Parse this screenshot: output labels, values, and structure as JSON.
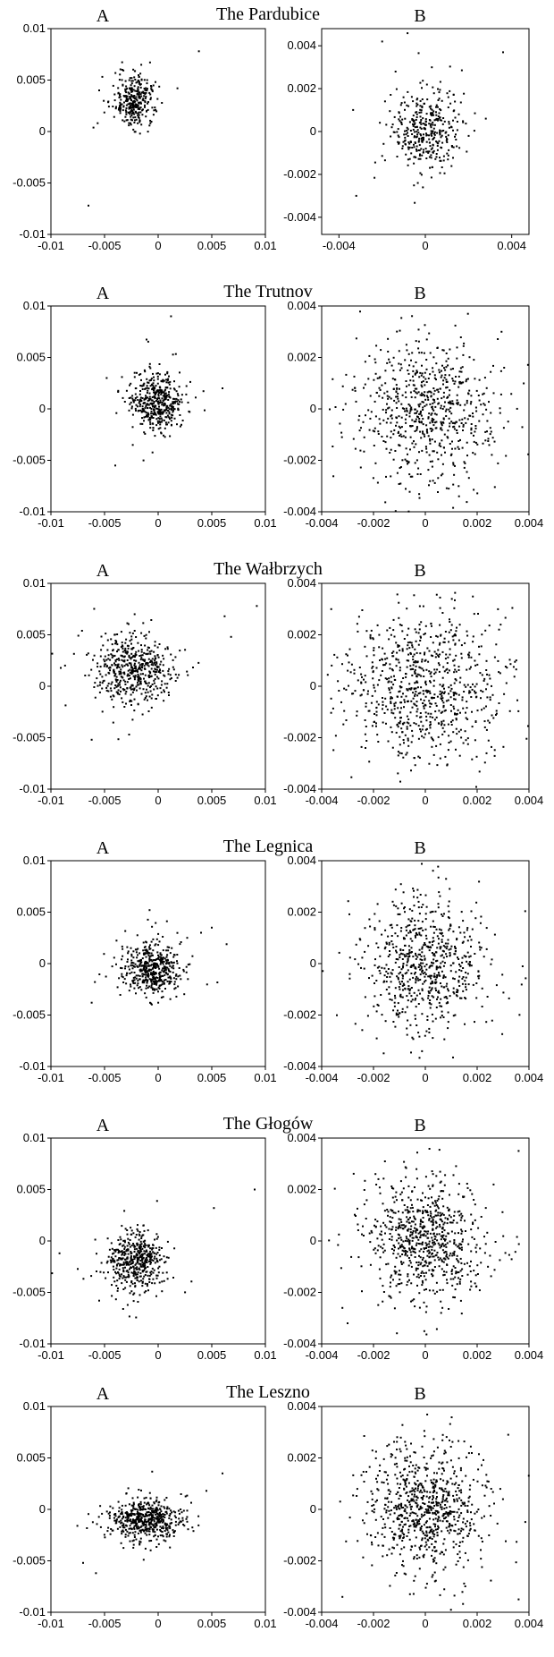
{
  "figure": {
    "panel_labels": [
      "A",
      "B"
    ]
  },
  "style": {
    "ink_color": "#000000",
    "background": "#ffffff"
  },
  "chart_data": [
    {
      "type": "scatter",
      "station": "The Pardubice",
      "title": "The Pardubice",
      "A": {
        "xlim": [
          -0.01,
          0.01
        ],
        "ylim": [
          -0.01,
          0.01
        ],
        "xticks": [
          "-0.01",
          "-0.005",
          "0",
          "0.005",
          "0.01"
        ],
        "yticks": [
          "-0.01",
          "-0.005",
          "0",
          "0.005",
          "0.01"
        ],
        "cluster": {
          "cx": -0.0022,
          "cy": 0.003,
          "sx": 0.0008,
          "sy": 0.0012,
          "n": 320
        },
        "outliers": [
          [
            -0.0065,
            -0.0072
          ],
          [
            0.0038,
            0.0078
          ],
          [
            -0.0055,
            0.004
          ],
          [
            0.0018,
            0.0042
          ]
        ]
      },
      "B": {
        "xlim": [
          -0.0048,
          0.0048
        ],
        "ylim": [
          -0.0048,
          0.0048
        ],
        "xticks": [
          "-0.004",
          "0",
          "0.004"
        ],
        "yticks": [
          "-0.004",
          "-0.002",
          "0",
          "0.002",
          "0.004"
        ],
        "cluster": {
          "cx": 0.0,
          "cy": 0.0,
          "sx": 0.0007,
          "sy": 0.0009,
          "n": 380
        },
        "outliers": [
          [
            -0.0032,
            -0.003
          ],
          [
            0.0036,
            0.0037
          ],
          [
            -0.002,
            0.0042
          ],
          [
            0.0028,
            0.0006
          ]
        ]
      }
    },
    {
      "type": "scatter",
      "station": "The Trutnov",
      "title": "The Trutnov",
      "A": {
        "xlim": [
          -0.01,
          0.01
        ],
        "ylim": [
          -0.01,
          0.01
        ],
        "xticks": [
          "-0.01",
          "-0.005",
          "0",
          "0.005",
          "0.01"
        ],
        "yticks": [
          "-0.01",
          "-0.005",
          "0",
          "0.005",
          "0.01"
        ],
        "cluster": {
          "cx": -0.0002,
          "cy": 0.0008,
          "sx": 0.0011,
          "sy": 0.0013,
          "n": 450
        },
        "outliers": [
          [
            -0.004,
            -0.0055
          ],
          [
            0.006,
            0.002
          ],
          [
            0.0012,
            0.009
          ],
          [
            -0.0048,
            0.003
          ]
        ]
      },
      "B": {
        "xlim": [
          -0.004,
          0.004
        ],
        "ylim": [
          -0.004,
          0.004
        ],
        "xticks": [
          "-0.004",
          "-0.002",
          "0",
          "0.002",
          "0.004"
        ],
        "yticks": [
          "-0.004",
          "-0.002",
          "0",
          "0.002",
          "0.004"
        ],
        "cluster": {
          "cx": 0.0,
          "cy": 0.0,
          "sx": 0.0013,
          "sy": 0.0013,
          "n": 700
        },
        "outliers": []
      }
    },
    {
      "type": "scatter",
      "station": "The Wałbrzych",
      "title": "The Wałbrzych",
      "A": {
        "xlim": [
          -0.01,
          0.01
        ],
        "ylim": [
          -0.01,
          0.01
        ],
        "xticks": [
          "-0.01",
          "-0.005",
          "0",
          "0.005",
          "0.01"
        ],
        "yticks": [
          "-0.01",
          "-0.005",
          "0",
          "0.005",
          "0.01"
        ],
        "cluster": {
          "cx": -0.0025,
          "cy": 0.0016,
          "sx": 0.0018,
          "sy": 0.0016,
          "n": 520
        },
        "outliers": [
          [
            0.0092,
            0.0078
          ],
          [
            0.0062,
            0.0068
          ],
          [
            0.0068,
            0.0048
          ],
          [
            -0.0062,
            -0.0052
          ]
        ]
      },
      "B": {
        "xlim": [
          -0.004,
          0.004
        ],
        "ylim": [
          -0.004,
          0.004
        ],
        "xticks": [
          "-0.004",
          "-0.002",
          "0",
          "0.002",
          "0.004"
        ],
        "yticks": [
          "-0.004",
          "-0.002",
          "0",
          "0.002",
          "0.004"
        ],
        "cluster": {
          "cx": 0.0,
          "cy": 0.0,
          "sx": 0.0015,
          "sy": 0.0014,
          "n": 800
        },
        "outliers": []
      }
    },
    {
      "type": "scatter",
      "station": "The Legnica",
      "title": "The Legnica",
      "A": {
        "xlim": [
          -0.01,
          0.01
        ],
        "ylim": [
          -0.01,
          0.01
        ],
        "xticks": [
          "-0.01",
          "-0.005",
          "0",
          "0.005",
          "0.01"
        ],
        "yticks": [
          "-0.01",
          "-0.005",
          "0",
          "0.005",
          "0.01"
        ],
        "cluster": {
          "cx": -0.0005,
          "cy": -0.0005,
          "sx": 0.0013,
          "sy": 0.0012,
          "n": 480
        },
        "outliers": [
          [
            0.005,
            0.0035
          ],
          [
            -0.0062,
            -0.0038
          ],
          [
            0.004,
            0.003
          ],
          [
            -0.0008,
            0.0052
          ]
        ]
      },
      "B": {
        "xlim": [
          -0.004,
          0.004
        ],
        "ylim": [
          -0.004,
          0.004
        ],
        "xticks": [
          "-0.004",
          "-0.002",
          "0",
          "0.002",
          "0.004"
        ],
        "yticks": [
          "-0.004",
          "-0.002",
          "0",
          "0.002",
          "0.004"
        ],
        "cluster": {
          "cx": 0.0,
          "cy": 0.0,
          "sx": 0.0011,
          "sy": 0.0012,
          "n": 700
        },
        "outliers": []
      }
    },
    {
      "type": "scatter",
      "station": "The Głogów",
      "title": "The Głogów",
      "A": {
        "xlim": [
          -0.01,
          0.01
        ],
        "ylim": [
          -0.01,
          0.01
        ],
        "xticks": [
          "-0.01",
          "-0.005",
          "0",
          "0.005",
          "0.01"
        ],
        "yticks": [
          "-0.01",
          "-0.005",
          "0",
          "0.005",
          "0.01"
        ],
        "cluster": {
          "cx": -0.002,
          "cy": -0.002,
          "sx": 0.0012,
          "sy": 0.0013,
          "n": 480
        },
        "outliers": [
          [
            0.009,
            0.005
          ],
          [
            -0.0092,
            -0.0012
          ],
          [
            0.0052,
            0.0032
          ],
          [
            -0.0055,
            -0.0058
          ]
        ]
      },
      "B": {
        "xlim": [
          -0.004,
          0.004
        ],
        "ylim": [
          -0.004,
          0.004
        ],
        "xticks": [
          "-0.004",
          "-0.002",
          "0",
          "0.002",
          "0.004"
        ],
        "yticks": [
          "-0.004",
          "-0.002",
          "0",
          "0.002",
          "0.004"
        ],
        "cluster": {
          "cx": 0.0,
          "cy": 0.0,
          "sx": 0.001,
          "sy": 0.0011,
          "n": 750
        },
        "outliers": [
          [
            0.0036,
            0.0035
          ],
          [
            -0.003,
            -0.0032
          ],
          [
            -0.0032,
            -0.0026
          ]
        ]
      }
    },
    {
      "type": "scatter",
      "station": "The Leszno",
      "title": "The Leszno",
      "A": {
        "xlim": [
          -0.01,
          0.01
        ],
        "ylim": [
          -0.01,
          0.01
        ],
        "xticks": [
          "-0.01",
          "-0.005",
          "0",
          "0.005",
          "0.01"
        ],
        "yticks": [
          "-0.01",
          "-0.005",
          "0",
          "0.005",
          "0.01"
        ],
        "cluster": {
          "cx": -0.0012,
          "cy": -0.001,
          "sx": 0.0015,
          "sy": 0.0009,
          "n": 550
        },
        "outliers": [
          [
            -0.007,
            -0.0052
          ],
          [
            0.006,
            0.0035
          ],
          [
            -0.0058,
            -0.0062
          ],
          [
            0.0045,
            0.0018
          ]
        ]
      },
      "B": {
        "xlim": [
          -0.004,
          0.004
        ],
        "ylim": [
          -0.004,
          0.004
        ],
        "xticks": [
          "-0.004",
          "-0.002",
          "0",
          "0.002",
          "0.004"
        ],
        "yticks": [
          "-0.004",
          "-0.002",
          "0",
          "0.002",
          "0.004"
        ],
        "cluster": {
          "cx": 0.0,
          "cy": 0.0,
          "sx": 0.001,
          "sy": 0.0011,
          "n": 800
        },
        "outliers": [
          [
            0.0036,
            -0.0035
          ],
          [
            -0.0032,
            -0.0034
          ],
          [
            0.0032,
            0.0029
          ]
        ]
      }
    }
  ]
}
